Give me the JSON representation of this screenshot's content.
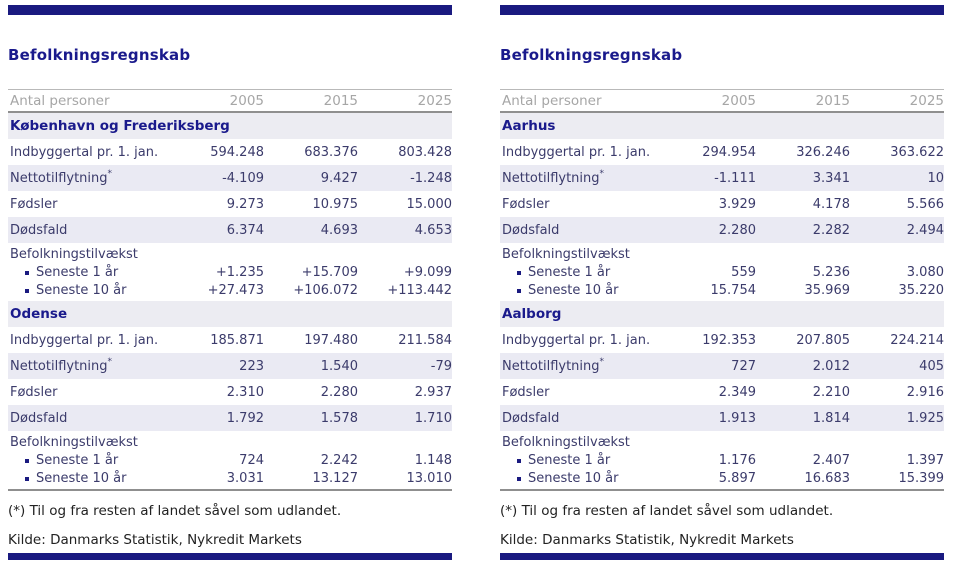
{
  "colors": {
    "navy_bar": "#1a1a80",
    "title_navy": "#1a1a8c",
    "row_alt": "#eaeaf3",
    "section_bg": "#ececf2",
    "header_gray": "#a6a6a6"
  },
  "footer": {
    "footnote": "(*) Til og fra resten af landet såvel som udlandet.",
    "source": "Kilde: Danmarks Statistik, Nykredit Markets"
  },
  "panels": [
    {
      "title": "Befolkningsregnskab",
      "header": {
        "label": "Antal personer",
        "years": [
          "2005",
          "2015",
          "2025"
        ]
      },
      "sections": [
        {
          "name": "København og Frederiksberg",
          "rows": [
            {
              "label": "Indbyggertal pr. 1. jan.",
              "values": [
                "594.248",
                "683.376",
                "803.428"
              ]
            },
            {
              "label": "Nettotilflytning",
              "sup": "*",
              "values": [
                "-4.109",
                "9.427",
                "-1.248"
              ]
            },
            {
              "label": "Fødsler",
              "values": [
                "9.273",
                "10.975",
                "15.000"
              ]
            },
            {
              "label": "Dødsfald",
              "values": [
                "6.374",
                "4.693",
                "4.653"
              ]
            }
          ],
          "growth": {
            "label": "Befolkningstilvækst",
            "subrows": [
              {
                "label": "Seneste 1 år",
                "values": [
                  "+1.235",
                  "+15.709",
                  "+9.099"
                ]
              },
              {
                "label": "Seneste 10 år",
                "values": [
                  "+27.473",
                  "+106.072",
                  "+113.442"
                ]
              }
            ]
          }
        },
        {
          "name": "Odense",
          "rows": [
            {
              "label": "Indbyggertal pr. 1. jan.",
              "values": [
                "185.871",
                "197.480",
                "211.584"
              ]
            },
            {
              "label": "Nettotilflytning",
              "sup": "*",
              "values": [
                "223",
                "1.540",
                "-79"
              ]
            },
            {
              "label": "Fødsler",
              "values": [
                "2.310",
                "2.280",
                "2.937"
              ]
            },
            {
              "label": "Dødsfald",
              "values": [
                "1.792",
                "1.578",
                "1.710"
              ]
            }
          ],
          "growth": {
            "label": "Befolkningstilvækst",
            "subrows": [
              {
                "label": "Seneste 1 år",
                "values": [
                  "724",
                  "2.242",
                  "1.148"
                ]
              },
              {
                "label": "Seneste 10 år",
                "values": [
                  "3.031",
                  "13.127",
                  "13.010"
                ]
              }
            ]
          }
        }
      ]
    },
    {
      "title": "Befolkningsregnskab",
      "header": {
        "label": "Antal personer",
        "years": [
          "2005",
          "2015",
          "2025"
        ]
      },
      "sections": [
        {
          "name": "Aarhus",
          "rows": [
            {
              "label": "Indbyggertal pr. 1. jan.",
              "values": [
                "294.954",
                "326.246",
                "363.622"
              ]
            },
            {
              "label": "Nettotilflytning",
              "sup": "*",
              "values": [
                "-1.111",
                "3.341",
                "10"
              ]
            },
            {
              "label": "Fødsler",
              "values": [
                "3.929",
                "4.178",
                "5.566"
              ]
            },
            {
              "label": "Dødsfald",
              "values": [
                "2.280",
                "2.282",
                "2.494"
              ]
            }
          ],
          "growth": {
            "label": "Befolkningstilvækst",
            "subrows": [
              {
                "label": "Seneste 1 år",
                "values": [
                  "559",
                  "5.236",
                  "3.080"
                ]
              },
              {
                "label": "Seneste 10 år",
                "values": [
                  "15.754",
                  "35.969",
                  "35.220"
                ]
              }
            ]
          }
        },
        {
          "name": "Aalborg",
          "rows": [
            {
              "label": "Indbyggertal pr. 1. jan.",
              "values": [
                "192.353",
                "207.805",
                "224.214"
              ]
            },
            {
              "label": "Nettotilflytning",
              "sup": "*",
              "values": [
                "727",
                "2.012",
                "405"
              ]
            },
            {
              "label": "Fødsler",
              "values": [
                "2.349",
                "2.210",
                "2.916"
              ]
            },
            {
              "label": "Dødsfald",
              "values": [
                "1.913",
                "1.814",
                "1.925"
              ]
            }
          ],
          "growth": {
            "label": "Befolkningstilvækst",
            "subrows": [
              {
                "label": "Seneste 1 år",
                "values": [
                  "1.176",
                  "2.407",
                  "1.397"
                ]
              },
              {
                "label": "Seneste 10 år",
                "values": [
                  "5.897",
                  "16.683",
                  "15.399"
                ]
              }
            ]
          }
        }
      ]
    }
  ]
}
